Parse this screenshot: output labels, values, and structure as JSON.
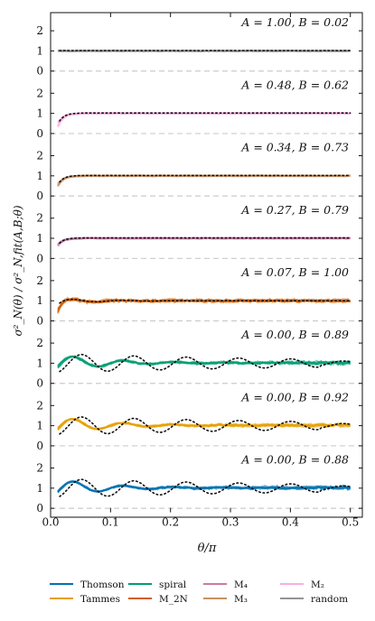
{
  "chart_data": {
    "type": "line",
    "xlabel": "θ/π",
    "ylabel": "σ²_N(θ) / σ²_N,fit(A,B;θ)",
    "xlim": [
      0,
      0.52
    ],
    "ylim_each_panel": [
      -0.2,
      2.9
    ],
    "xticks": [
      0.0,
      0.1,
      0.2,
      0.3,
      0.4,
      0.5
    ],
    "xtick_labels": [
      "0.0",
      "0.1",
      "0.2",
      "0.3",
      "0.4",
      "0.5"
    ],
    "yticks": [
      0,
      1,
      2
    ],
    "ytick_labels": [
      "0",
      "1",
      "2"
    ],
    "grid": false,
    "reference_line": {
      "y": 0,
      "style": "dashed",
      "color": "#cccccc"
    },
    "legend": {
      "position": "bottom",
      "entries": [
        {
          "label": "Thomson",
          "color": "#0072b2"
        },
        {
          "label": "Tammes",
          "color": "#e69f00"
        },
        {
          "label": "spiral",
          "color": "#009e73"
        },
        {
          "label": "M_2N",
          "color": "#d55e00"
        },
        {
          "label": "M₄",
          "color": "#cc79a7"
        },
        {
          "label": "M₃",
          "color": "#ca9161"
        },
        {
          "label": "M₂",
          "color": "#fbafe4"
        },
        {
          "label": "random",
          "color": "#949494"
        }
      ]
    },
    "panels": [
      {
        "series": "random",
        "color": "#949494",
        "annotation": "A = 1.00, B = 0.02",
        "A": 1.0,
        "B": 0.02
      },
      {
        "series": "M₂",
        "color": "#fbafe4",
        "annotation": "A = 0.48, B = 0.62",
        "A": 0.48,
        "B": 0.62
      },
      {
        "series": "M₃",
        "color": "#ca9161",
        "annotation": "A = 0.34, B = 0.73",
        "A": 0.34,
        "B": 0.73
      },
      {
        "series": "M₄",
        "color": "#cc79a7",
        "annotation": "A = 0.27, B = 0.79",
        "A": 0.27,
        "B": 0.79
      },
      {
        "series": "M_2N",
        "color": "#d55e00",
        "annotation": "A = 0.07, B = 1.00",
        "A": 0.07,
        "B": 1.0
      },
      {
        "series": "spiral",
        "color": "#009e73",
        "annotation": "A = 0.00, B = 0.89",
        "A": 0.0,
        "B": 0.89
      },
      {
        "series": "Tammes",
        "color": "#e69f00",
        "annotation": "A = 0.00, B = 0.92",
        "A": 0.0,
        "B": 0.92
      },
      {
        "series": "Thomson",
        "color": "#0072b2",
        "annotation": "A = 0.00, B = 0.88",
        "A": 0.0,
        "B": 0.88
      }
    ]
  }
}
